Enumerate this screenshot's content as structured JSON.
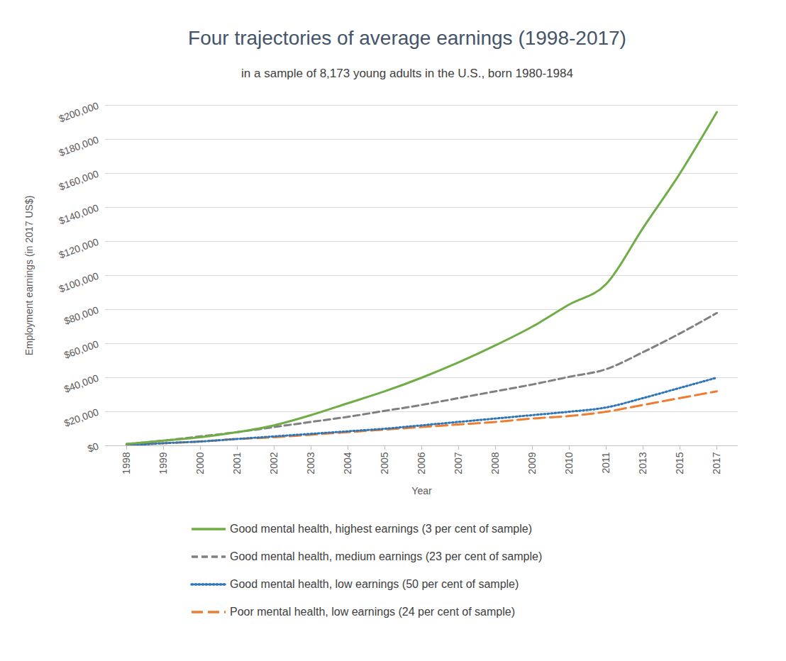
{
  "chart_data": {
    "type": "line",
    "title": "Four trajectories of average earnings (1998-2017)",
    "subtitle": "in a sample of 8,173 young adults in the U.S., born 1980-1984",
    "x_label": "Year",
    "y_label": "Employment earnings (in 2017 US$)",
    "categories": [
      "1998",
      "1999",
      "2000",
      "2001",
      "2002",
      "2003",
      "2004",
      "2005",
      "2006",
      "2007",
      "2008",
      "2009",
      "2010",
      "2011",
      "2013",
      "2015",
      "2017"
    ],
    "series": [
      {
        "name": "Good mental health, highest earnings (3 per cent of sample)",
        "color": "#70ad47",
        "line_style": "solid",
        "values": [
          1000,
          3000,
          5000,
          8000,
          12000,
          18000,
          25000,
          32000,
          40000,
          49000,
          59000,
          70000,
          83000,
          95000,
          128000,
          160000,
          196000
        ]
      },
      {
        "name": "Good mental health, medium earnings (23 per cent of sample)",
        "color": "#808080",
        "line_style": "dashed",
        "values": [
          1000,
          3000,
          5500,
          8000,
          11000,
          14000,
          17000,
          20500,
          24000,
          28000,
          32000,
          36000,
          40500,
          45000,
          55000,
          66000,
          78000
        ]
      },
      {
        "name": "Good mental health, low earnings (50 per cent of sample)",
        "color": "#2e75b6",
        "line_style": "dotted",
        "values": [
          0,
          1500,
          2500,
          4000,
          5500,
          7000,
          8500,
          10000,
          12000,
          14000,
          16000,
          18000,
          20000,
          22500,
          28000,
          34000,
          40000
        ]
      },
      {
        "name": "Poor mental health, low earnings (24 per cent of sample)",
        "color": "#ed7d31",
        "line_style": "longdash",
        "values": [
          500,
          1500,
          2500,
          4000,
          5000,
          6500,
          8000,
          9500,
          11000,
          12500,
          14000,
          16000,
          17500,
          20000,
          24000,
          28000,
          32000
        ]
      }
    ],
    "ylim": [
      0,
      200000
    ],
    "yticks": [
      {
        "value": 0,
        "label": "$0"
      },
      {
        "value": 20000,
        "label": "$20,000"
      },
      {
        "value": 40000,
        "label": "$40,000"
      },
      {
        "value": 60000,
        "label": "$60,000"
      },
      {
        "value": 80000,
        "label": "$80,000"
      },
      {
        "value": 100000,
        "label": "$100,000"
      },
      {
        "value": 120000,
        "label": "$120,000"
      },
      {
        "value": 140000,
        "label": "$140,000"
      },
      {
        "value": 160000,
        "label": "$160,000"
      },
      {
        "value": 180000,
        "label": "$180,000"
      },
      {
        "value": 200000,
        "label": "$200,000"
      }
    ],
    "grid": true,
    "legend": "bottom"
  }
}
